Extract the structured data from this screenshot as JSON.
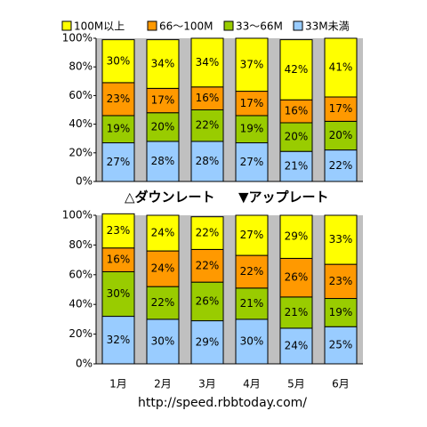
{
  "chart_data": [
    {
      "type": "stacked-bar",
      "series": [
        {
          "name": "100M以上",
          "color": "#ffff00",
          "values": [
            30,
            34,
            34,
            37,
            42,
            41
          ],
          "value_labels": [
            "30%",
            "34%",
            "34%",
            "37%",
            "42%",
            "41%"
          ]
        },
        {
          "name": "66～100M",
          "color": "#ff9900",
          "values": [
            23,
            17,
            16,
            17,
            16,
            17
          ],
          "value_labels": [
            "23%",
            "17%",
            "16%",
            "17%",
            "16%",
            "17%"
          ]
        },
        {
          "name": "33～66M",
          "color": "#99cc00",
          "values": [
            19,
            20,
            22,
            19,
            20,
            20
          ],
          "value_labels": [
            "19%",
            "20%",
            "22%",
            "19%",
            "20%",
            "20%"
          ]
        },
        {
          "name": "33M未満",
          "color": "#99ccff",
          "values": [
            27,
            28,
            28,
            27,
            21,
            22
          ],
          "value_labels": [
            "27%",
            "28%",
            "28%",
            "27%",
            "21%",
            "22%"
          ]
        }
      ],
      "ylim": [
        0,
        100
      ],
      "yticks": [
        {
          "value": 0,
          "label": "0%"
        },
        {
          "value": 20,
          "label": "20%"
        },
        {
          "value": 40,
          "label": "40%"
        },
        {
          "value": 60,
          "label": "60%"
        },
        {
          "value": 80,
          "label": "80%"
        },
        {
          "value": 100,
          "label": "100%"
        }
      ]
    },
    {
      "type": "stacked-bar",
      "categories": [
        "1月",
        "2月",
        "3月",
        "4月",
        "5月",
        "6月"
      ],
      "series": [
        {
          "color": "#ffff00",
          "values": [
            23,
            24,
            22,
            27,
            29,
            33
          ],
          "value_labels": [
            "23%",
            "24%",
            "22%",
            "27%",
            "29%",
            "33%"
          ]
        },
        {
          "color": "#ff9900",
          "values": [
            16,
            24,
            22,
            22,
            26,
            23
          ],
          "value_labels": [
            "16%",
            "24%",
            "22%",
            "22%",
            "26%",
            "23%"
          ]
        },
        {
          "color": "#99cc00",
          "values": [
            30,
            22,
            26,
            21,
            21,
            19
          ],
          "value_labels": [
            "30%",
            "22%",
            "26%",
            "21%",
            "21%",
            "19%"
          ]
        },
        {
          "color": "#99ccff",
          "values": [
            32,
            30,
            29,
            30,
            24,
            25
          ],
          "value_labels": [
            "32%",
            "30%",
            "29%",
            "30%",
            "24%",
            "25%"
          ]
        }
      ],
      "ylim": [
        0,
        100
      ],
      "yticks": [
        {
          "value": 0,
          "label": "0%"
        },
        {
          "value": 20,
          "label": "20%"
        },
        {
          "value": 40,
          "label": "40%"
        },
        {
          "value": 60,
          "label": "60%"
        },
        {
          "value": 80,
          "label": "80%"
        },
        {
          "value": 100,
          "label": "100%"
        }
      ]
    }
  ],
  "caption": [
    "△ダウンレート",
    "▼アップレート"
  ],
  "footer": "http://speed.rbbtoday.com/"
}
